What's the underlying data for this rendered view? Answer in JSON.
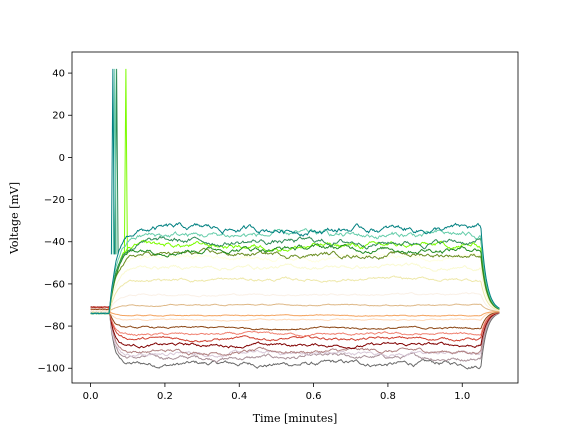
{
  "chart_data": {
    "type": "line",
    "title": "",
    "xlabel": "Time [minutes]",
    "ylabel": "Voltage [mV]",
    "xlim": [
      -0.05,
      1.15
    ],
    "ylim": [
      -107,
      50
    ],
    "xticks": [
      0.0,
      0.2,
      0.4,
      0.6,
      0.8,
      1.0
    ],
    "xtick_labels": [
      "0.0",
      "0.2",
      "0.4",
      "0.6",
      "0.8",
      "1.0"
    ],
    "yticks": [
      40,
      20,
      0,
      -20,
      -40,
      -60,
      -80,
      -100
    ],
    "ytick_labels": [
      "40",
      "20",
      "0",
      "−20",
      "−40",
      "−60",
      "−80",
      "−100"
    ],
    "grid": false,
    "legend": false,
    "stimulus_window": [
      0.05,
      1.05
    ],
    "resting_potential": -73,
    "series": [
      {
        "color": "#696969",
        "holding": -71,
        "steady": -98,
        "spike_times": []
      },
      {
        "color": "#a89098",
        "holding": -71,
        "steady": -95,
        "spike_times": []
      },
      {
        "color": "#d8c8d8",
        "holding": -71,
        "steady": -93,
        "spike_times": []
      },
      {
        "color": "#b08080",
        "holding": -71,
        "steady": -92,
        "spike_times": []
      },
      {
        "color": "#800000",
        "holding": -71,
        "steady": -89,
        "spike_times": []
      },
      {
        "color": "#d04030",
        "holding": -71,
        "steady": -86,
        "spike_times": []
      },
      {
        "color": "#f08070",
        "holding": -72,
        "steady": -84,
        "spike_times": []
      },
      {
        "color": "#8b4513",
        "holding": -72,
        "steady": -81,
        "spike_times": []
      },
      {
        "color": "#ffdab9",
        "holding": -73,
        "steady": -77,
        "spike_times": []
      },
      {
        "color": "#f4a460",
        "holding": -73,
        "steady": -75,
        "spike_times": []
      },
      {
        "color": "#deb887",
        "holding": -73,
        "steady": -70,
        "spike_times": []
      },
      {
        "color": "#faf0e6",
        "holding": -73,
        "steady": -65,
        "spike_times": []
      },
      {
        "color": "#eee8aa",
        "holding": -74,
        "steady": -58,
        "spike_times": []
      },
      {
        "color": "#fafad2",
        "holding": -74,
        "steady": -52,
        "spike_times": []
      },
      {
        "color": "#ffffe0",
        "holding": -74,
        "steady": -47,
        "spike_times": []
      },
      {
        "color": "#6b8e23",
        "holding": -74,
        "steady": -46,
        "spike_times": []
      },
      {
        "color": "#7cfc00",
        "holding": -74,
        "steady": -42,
        "spike_times": [
          0.095
        ]
      },
      {
        "color": "#228b22",
        "holding": -74,
        "steady": -43,
        "spike_times": []
      },
      {
        "color": "#2e8b57",
        "holding": -74,
        "steady": -40,
        "spike_times": [
          0.07
        ]
      },
      {
        "color": "#66cdaa",
        "holding": -74,
        "steady": -37,
        "spike_times": [
          0.065
        ]
      },
      {
        "color": "#008080",
        "holding": -74,
        "steady": -34,
        "spike_times": [
          0.06
        ]
      }
    ]
  }
}
